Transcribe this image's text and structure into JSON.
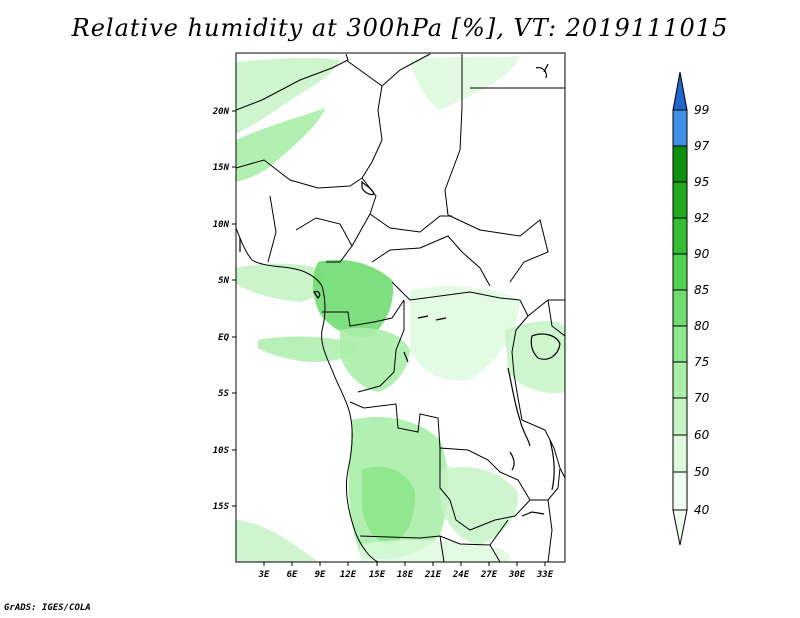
{
  "title": "Relative humidity at 300hPa [%], VT: 2019111015",
  "credit": "GrADS: IGES/COLA",
  "map": {
    "lon_range": [
      0,
      35
    ],
    "lat_range": [
      -20,
      25
    ],
    "lon_ticks": [
      "3E",
      "6E",
      "9E",
      "12E",
      "15E",
      "18E",
      "21E",
      "24E",
      "27E",
      "30E",
      "33E"
    ],
    "lat_ticks": [
      "20N",
      "15N",
      "10N",
      "5N",
      "EQ",
      "5S",
      "10S",
      "15S"
    ]
  },
  "colorbar": {
    "levels": [
      "40",
      "50",
      "60",
      "70",
      "75",
      "80",
      "85",
      "90",
      "92",
      "95",
      "97",
      "99"
    ],
    "colors": {
      "c40": "#f0fff0",
      "c50": "#dcf9dc",
      "c60": "#c5f3c5",
      "c70": "#aaeeaa",
      "c75": "#8ce68c",
      "c80": "#6fdc6f",
      "c85": "#50d050",
      "c90": "#35bd35",
      "c92": "#20a820",
      "c95": "#0f8f0f",
      "c97": "#3f8fe6",
      "c99": "#1f66cc",
      "top": "#1446a8"
    }
  }
}
